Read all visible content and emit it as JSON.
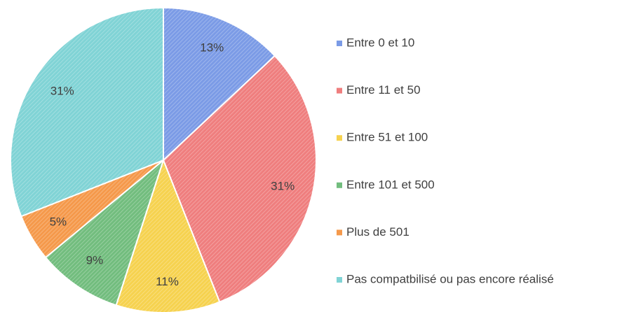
{
  "chart_data": {
    "type": "pie",
    "categories": [
      "Entre 0 et 10",
      "Entre 11 et 50",
      "Entre 51 et 100",
      "Entre 101 et 500",
      "Plus de 501",
      "Pas compatbilisé ou pas encore réalisé"
    ],
    "values": [
      13,
      31,
      11,
      9,
      5,
      31
    ],
    "value_labels": [
      "13%",
      "31%",
      "11%",
      "9%",
      "5%",
      "31%"
    ],
    "colors": [
      "#7b9be6",
      "#ef7e7e",
      "#f6d24f",
      "#72bd7e",
      "#f5994b",
      "#80d3d5"
    ],
    "legend": "right"
  }
}
